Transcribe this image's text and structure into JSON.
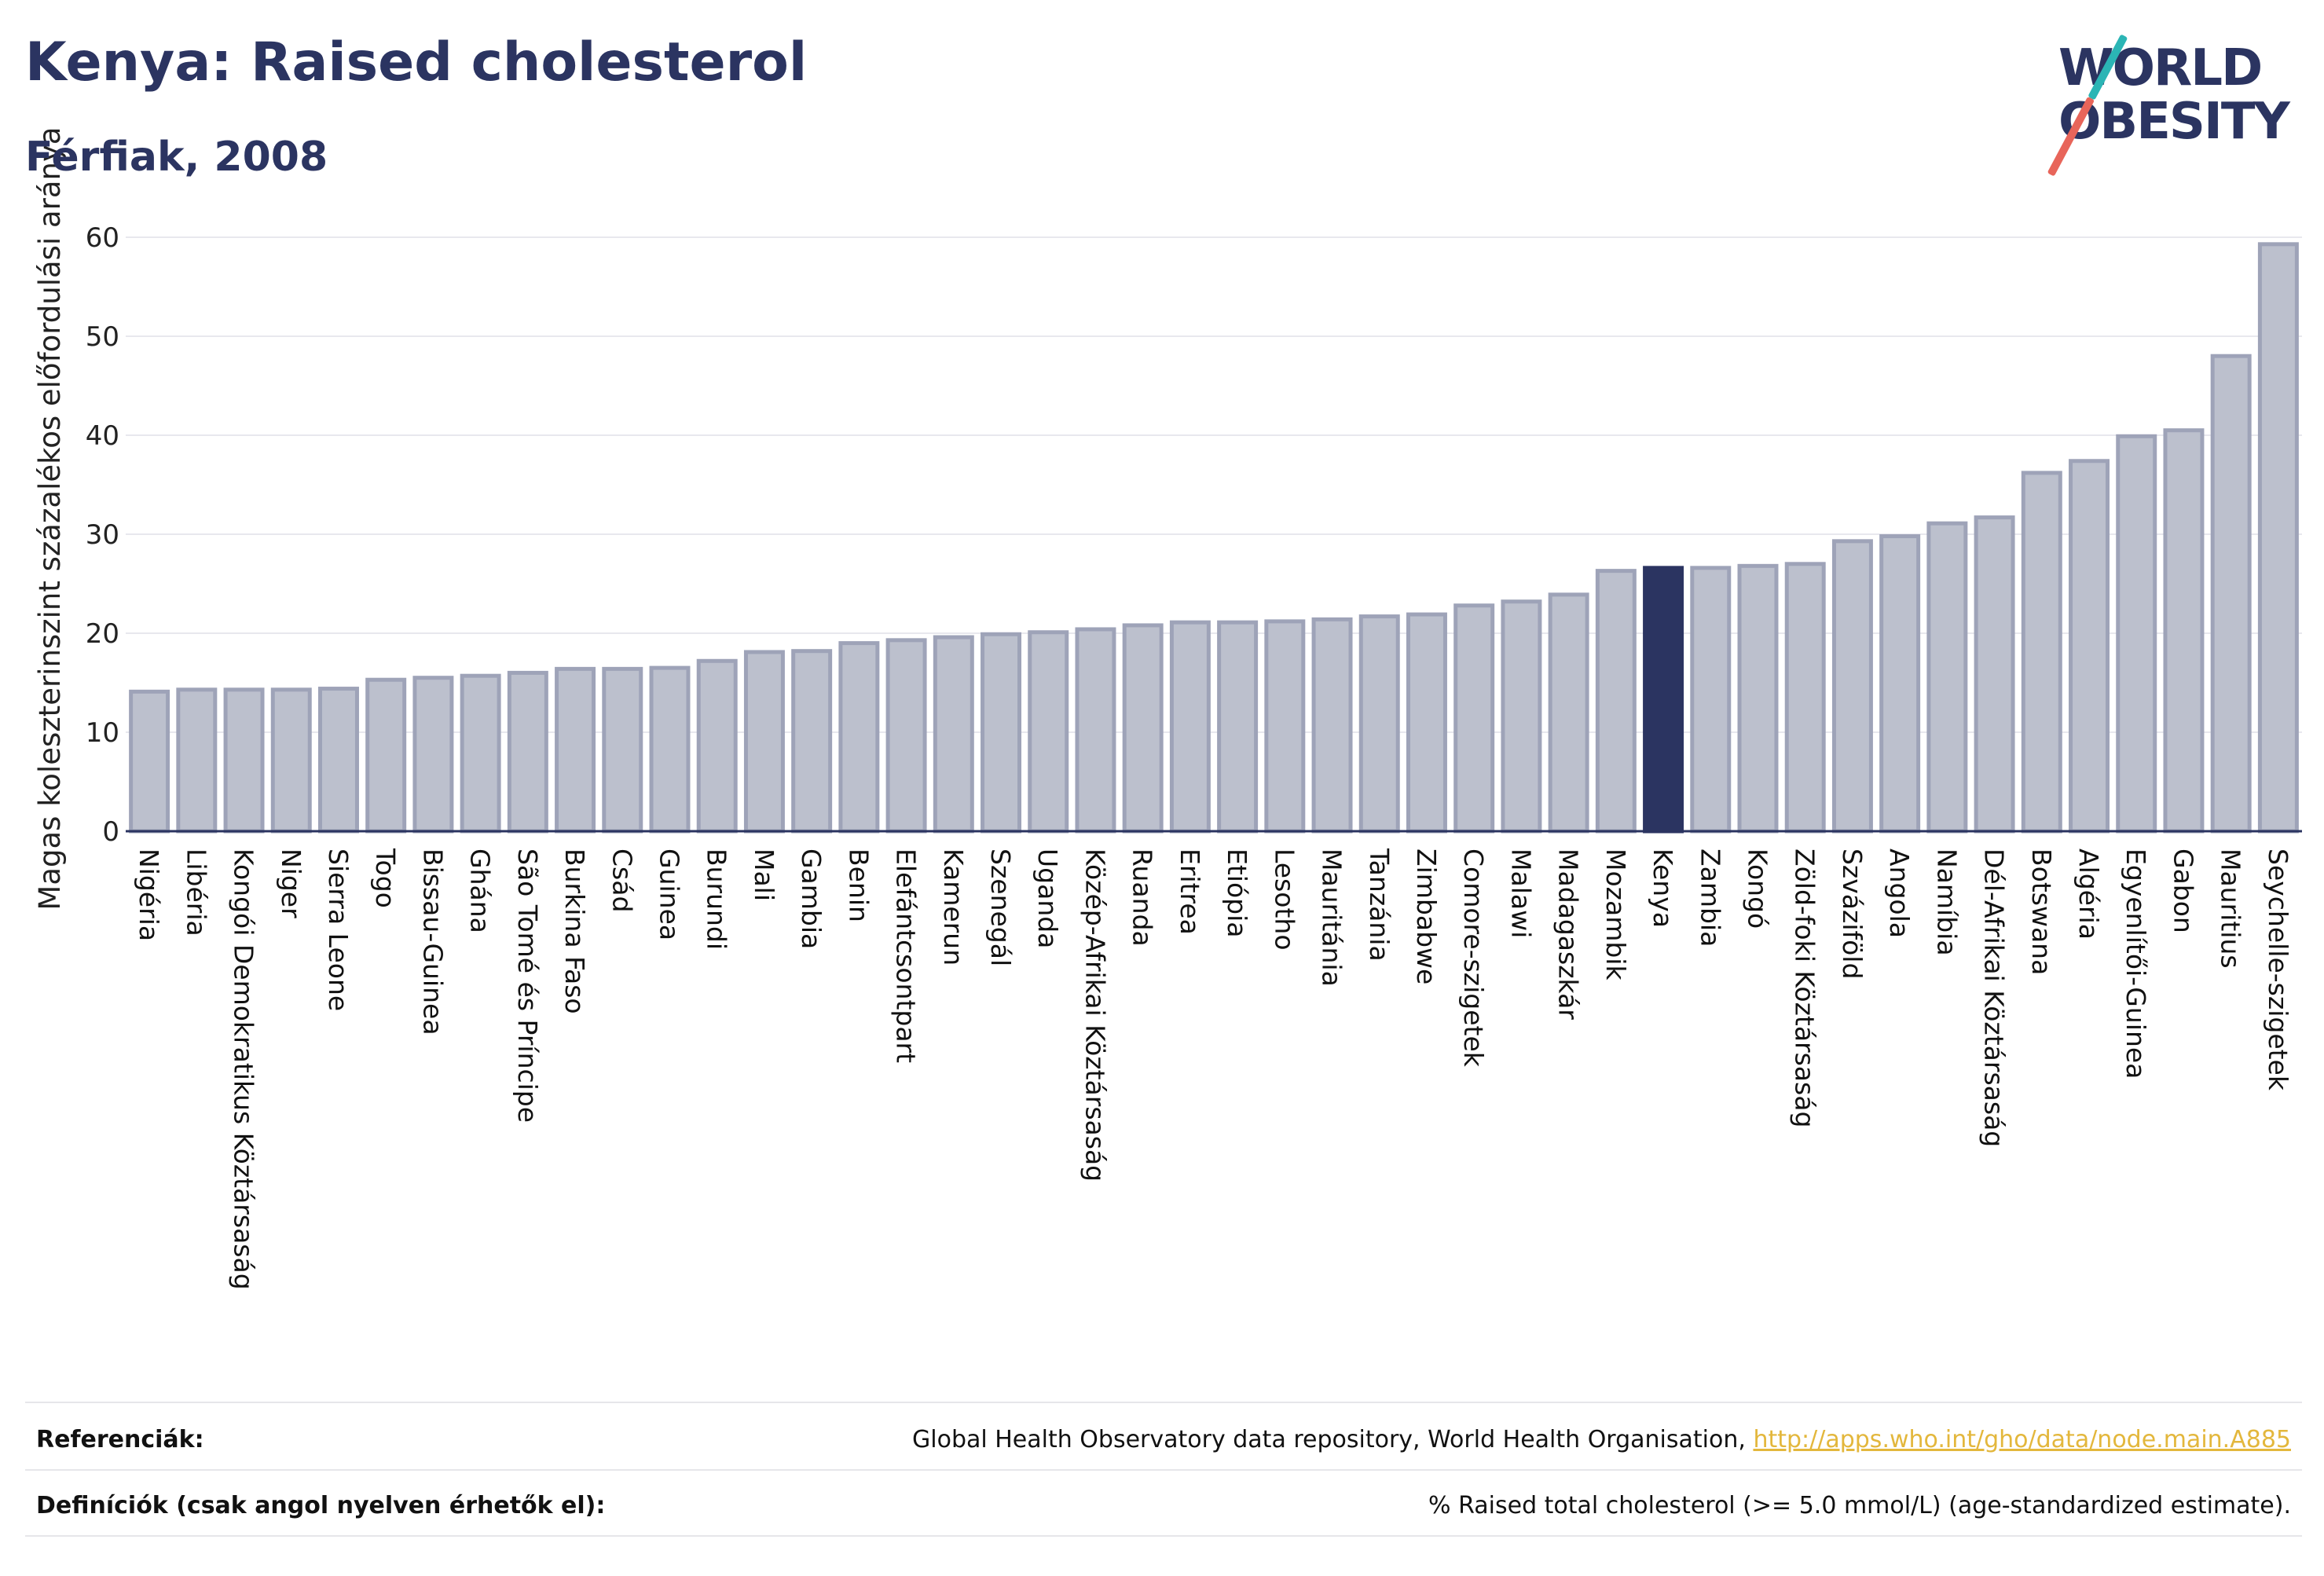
{
  "header": {
    "title": "Kenya: Raised cholesterol",
    "subtitle": "Férfiak, 2008"
  },
  "logo": {
    "line1": "WORLD",
    "line2": "OBESITY"
  },
  "colors": {
    "bar": "#bcc0cd",
    "bar_stroke": "#9ea3b8",
    "highlight": "#2b3461",
    "title": "#2b3461",
    "link": "#e3b73c"
  },
  "chart_data": {
    "type": "bar",
    "ylabel": "Magas koleszterinszint százalékos előfordulási aránya",
    "xlabel": "",
    "ylim": [
      0,
      60
    ],
    "yticks": [
      0,
      10,
      20,
      30,
      40,
      50,
      60
    ],
    "grid": true,
    "highlight": "Kenya",
    "categories": [
      "Nigéria",
      "Libéria",
      "Kongói Demokratikus Köztársaság",
      "Niger",
      "Sierra Leone",
      "Togo",
      "Bissau-Guinea",
      "Ghána",
      "São Tomé és Príncipe",
      "Burkina Faso",
      "Csád",
      "Guinea",
      "Burundi",
      "Mali",
      "Gambia",
      "Benin",
      "Elefántcsontpart",
      "Kamerun",
      "Szenegál",
      "Uganda",
      "Közép-Afrikai Köztársaság",
      "Ruanda",
      "Eritrea",
      "Etiópia",
      "Lesotho",
      "Mauritánia",
      "Tanzánia",
      "Zimbabwe",
      "Comore-szigetek",
      "Malawi",
      "Madagaszkár",
      "Mozambik",
      "Kenya",
      "Zambia",
      "Kongó",
      "Zöld-foki Köztársaság",
      "Szváziföld",
      "Angola",
      "Namíbia",
      "Dél-Afrikai Köztársaság",
      "Botswana",
      "Algéria",
      "Egyenlítői-Guinea",
      "Gabon",
      "Mauritius",
      "Seychelle-szigetek"
    ],
    "values": [
      14.1,
      14.3,
      14.3,
      14.3,
      14.4,
      15.3,
      15.5,
      15.7,
      16.0,
      16.4,
      16.4,
      16.5,
      17.2,
      18.1,
      18.2,
      19.0,
      19.3,
      19.6,
      19.9,
      20.1,
      20.4,
      20.8,
      21.1,
      21.1,
      21.2,
      21.4,
      21.7,
      21.9,
      22.8,
      23.2,
      23.9,
      26.3,
      26.6,
      26.6,
      26.8,
      27.0,
      29.3,
      29.8,
      31.1,
      31.7,
      36.2,
      37.4,
      39.9,
      40.5,
      48.0,
      59.3
    ]
  },
  "footer": {
    "references_label": "Referenciák:",
    "references_text": "Global Health Observatory data repository, World Health Organisation, ",
    "references_link": "http://apps.who.int/gho/data/node.main.A885",
    "definitions_label": "Definíciók (csak angol nyelven érhetők el):",
    "definitions_text": "% Raised total cholesterol (>= 5.0 mmol/L) (age-standardized estimate)."
  }
}
